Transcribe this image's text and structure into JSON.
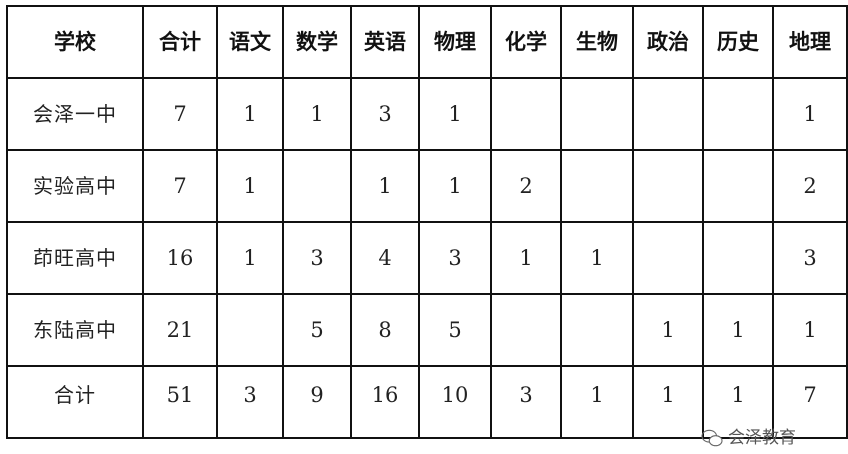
{
  "table": {
    "headers": [
      "学校",
      "合计",
      "语文",
      "数学",
      "英语",
      "物理",
      "化学",
      "生物",
      "政治",
      "历史",
      "地理"
    ],
    "rows": [
      [
        "会泽一中",
        "7",
        "1",
        "1",
        "3",
        "1",
        "",
        "",
        "",
        "",
        "1"
      ],
      [
        "实验高中",
        "7",
        "1",
        "",
        "1",
        "1",
        "2",
        "",
        "",
        "",
        "2"
      ],
      [
        "茚旺高中",
        "16",
        "1",
        "3",
        "4",
        "3",
        "1",
        "1",
        "",
        "",
        "3"
      ],
      [
        "东陆高中",
        "21",
        "",
        "5",
        "8",
        "5",
        "",
        "",
        "1",
        "1",
        "1"
      ],
      [
        "合计",
        "51",
        "3",
        "9",
        "16",
        "10",
        "3",
        "1",
        "1",
        "1",
        "7"
      ]
    ]
  },
  "watermark": {
    "text": "会泽教育",
    "icon": "wechat-icon"
  }
}
